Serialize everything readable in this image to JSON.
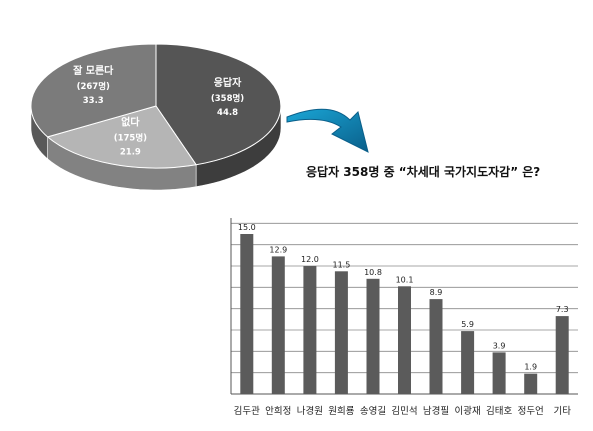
{
  "question": "응답자 358명 중 “차세대 국가지도자감” 은?",
  "chart_data": [
    {
      "type": "pie",
      "title": "",
      "slices": [
        {
          "label": "응답자",
          "count_label": "(358명)",
          "value": 44.8,
          "color": "#555555"
        },
        {
          "label": "없다",
          "count_label": "(175명)",
          "value": 21.9,
          "color": "#b5b5b5"
        },
        {
          "label": "잘 모른다",
          "count_label": "(267명)",
          "value": 33.3,
          "color": "#7b7b7b"
        }
      ]
    },
    {
      "type": "bar",
      "title": "",
      "xlabel": "",
      "ylabel": "",
      "ylim": [
        0,
        16.5
      ],
      "grid": true,
      "categories": [
        "김두관",
        "안희정",
        "나경원",
        "원희룡",
        "송영길",
        "김민석",
        "남경필",
        "이광재",
        "김태호",
        "정두언",
        "기타"
      ],
      "values": [
        15.0,
        12.9,
        12.0,
        11.5,
        10.8,
        10.1,
        8.9,
        5.9,
        3.9,
        1.9,
        7.3
      ],
      "value_labels": [
        "15.0",
        "12.9",
        "12.0",
        "11.5",
        "10.8",
        "10.1",
        "8.9",
        "5.9",
        "3.9",
        "1.9",
        "7.3"
      ],
      "bar_color": "#5b5b5b"
    }
  ]
}
